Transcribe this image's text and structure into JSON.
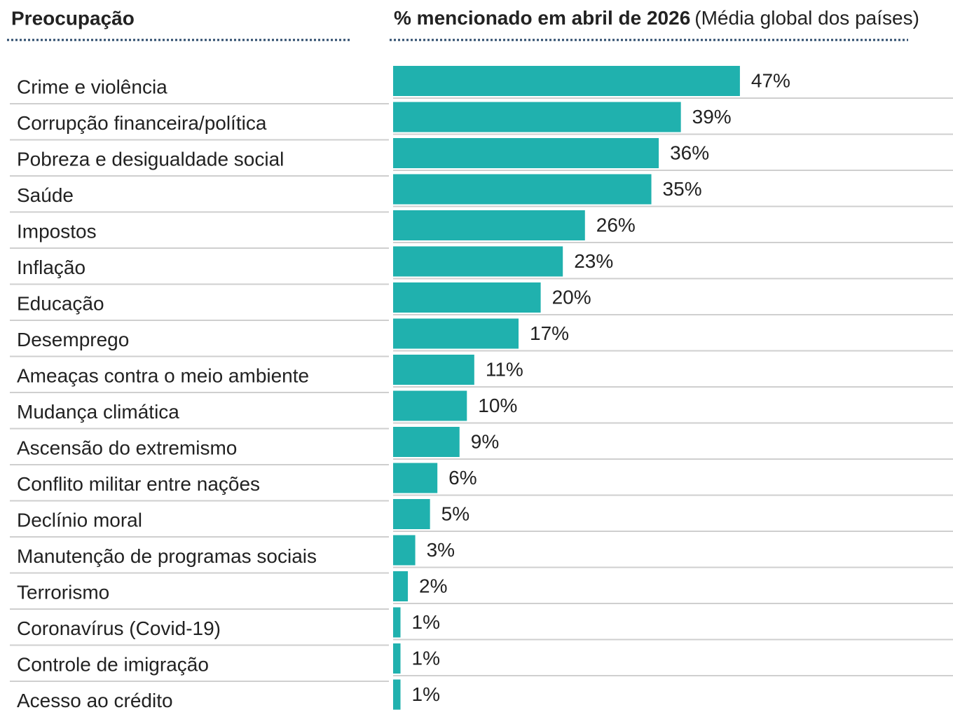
{
  "chart_data": {
    "type": "bar",
    "orientation": "horizontal",
    "label_header": "Preocupação",
    "title": "% mencionado em abril de 2026",
    "subtitle": "(Média global dos países)",
    "color": "#20b1ae",
    "categories": [
      "Crime e violência",
      "Corrupção financeira/política",
      "Pobreza e desigualdade social",
      "Saúde",
      "Impostos",
      "Inflação",
      "Educação",
      "Desemprego",
      "Ameaças contra o meio ambiente",
      "Mudança climática",
      "Ascensão do extremismo",
      "Conflito militar entre nações",
      "Declínio moral",
      "Manutenção de programas sociais",
      "Terrorismo",
      "Coronavírus (Covid-19)",
      "Controle de imigração",
      "Acesso ao crédito"
    ],
    "values": [
      47,
      39,
      36,
      35,
      26,
      23,
      20,
      17,
      11,
      10,
      9,
      6,
      5,
      3,
      2,
      1,
      1,
      1
    ],
    "value_labels": [
      "47%",
      "39%",
      "36%",
      "35%",
      "26%",
      "23%",
      "20%",
      "17%",
      "11%",
      "10%",
      "9%",
      "6%",
      "5%",
      "3%",
      "2%",
      "1%",
      "1%",
      "1%"
    ]
  }
}
